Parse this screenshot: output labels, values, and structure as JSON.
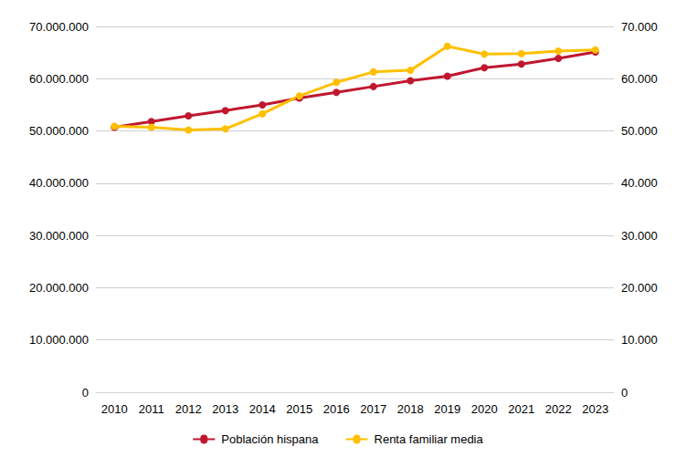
{
  "chart_data": {
    "type": "line",
    "categories": [
      "2010",
      "2011",
      "2012",
      "2013",
      "2014",
      "2015",
      "2016",
      "2017",
      "2018",
      "2019",
      "2020",
      "2021",
      "2022",
      "2023"
    ],
    "series": [
      {
        "name": "Población hispana",
        "color": "#c0172f",
        "marker": "circle",
        "values": [
          50700000,
          51800000,
          52900000,
          53900000,
          55000000,
          56300000,
          57400000,
          58500000,
          59600000,
          60500000,
          62100000,
          62800000,
          63900000,
          65100000
        ]
      },
      {
        "name": "Renta familiar media",
        "color": "#ffc000",
        "marker": "circle",
        "axis": "y2",
        "values": [
          50900,
          50700,
          50200,
          50400,
          53300,
          56700,
          59300,
          61300,
          61600,
          66200,
          64700,
          64800,
          65300,
          65500
        ]
      }
    ],
    "ylim": [
      0,
      70000000
    ],
    "yticks": [
      0,
      {
        "value": 10000000,
        "label": "10.000.000"
      },
      {
        "value": 20000000,
        "label": "20.000.000"
      },
      {
        "value": 30000000,
        "label": "30.000.000"
      },
      {
        "value": 40000000,
        "label": "40.000.000"
      },
      {
        "value": 50000000,
        "label": "50.000.000"
      },
      {
        "value": 60000000,
        "label": "60.000.000"
      },
      {
        "value": 70000000,
        "label": "70.000.000"
      }
    ],
    "y2lim": [
      0,
      70000
    ],
    "y2ticks": [
      0,
      {
        "value": 10000,
        "label": "10.000"
      },
      {
        "value": 20000,
        "label": "20.000"
      },
      {
        "value": 30000,
        "label": "30.000"
      },
      {
        "value": 40000,
        "label": "40.000"
      },
      {
        "value": 50000,
        "label": "50.000"
      },
      {
        "value": 60000,
        "label": "60.000"
      },
      {
        "value": 70000,
        "label": "70.000"
      }
    ],
    "grid": true,
    "legend": "bottom"
  }
}
